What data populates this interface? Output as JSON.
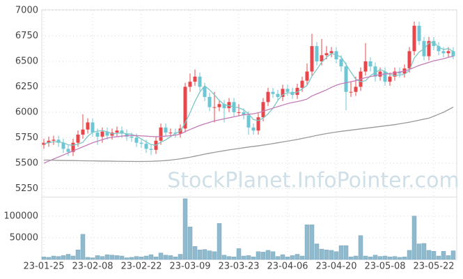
{
  "chart_data": {
    "type": "candlestick",
    "watermark": "StockPlanet.InfoPointer.com",
    "categories": [
      "23-01-25",
      null,
      null,
      null,
      null,
      null,
      null,
      null,
      null,
      null,
      "23-02-08",
      null,
      null,
      null,
      null,
      null,
      null,
      null,
      null,
      null,
      "23-02-22",
      null,
      null,
      null,
      null,
      null,
      null,
      null,
      null,
      null,
      "23-03-09",
      null,
      null,
      null,
      null,
      null,
      null,
      null,
      null,
      null,
      "23-03-23",
      null,
      null,
      null,
      null,
      null,
      null,
      null,
      null,
      null,
      "23-04-06",
      null,
      null,
      null,
      null,
      null,
      null,
      null,
      null,
      null,
      "23-04-20",
      null,
      null,
      null,
      null,
      null,
      null,
      null,
      null,
      null,
      "23-05-08",
      null,
      null,
      null,
      null,
      null,
      null,
      null,
      null,
      null,
      "23-05-22",
      null,
      null,
      null,
      null
    ],
    "open": [
      5680,
      5700,
      5720,
      5730,
      5700,
      5640,
      5610,
      5700,
      5780,
      5830,
      5900,
      5800,
      5760,
      5810,
      5770,
      5800,
      5820,
      5790,
      5760,
      5750,
      5700,
      5690,
      5640,
      5630,
      5720,
      5850,
      5800,
      5800,
      5790,
      5840,
      6250,
      6300,
      6350,
      6250,
      6150,
      6050,
      6050,
      6080,
      6040,
      6100,
      6000,
      6000,
      5970,
      5850,
      5820,
      5950,
      6100,
      6200,
      6180,
      6150,
      6230,
      6200,
      6170,
      6240,
      6310,
      6400,
      6650,
      6500,
      6560,
      6580,
      6600,
      6520,
      6450,
      6200,
      6200,
      6250,
      6400,
      6500,
      6450,
      6350,
      6400,
      6300,
      6350,
      6400,
      6380,
      6430,
      6600,
      6850,
      6700,
      6550,
      6700,
      6650,
      6600,
      6580,
      6600
    ],
    "high": [
      5740,
      5760,
      5770,
      5770,
      5740,
      5680,
      5740,
      5820,
      5980,
      5940,
      5940,
      5840,
      5850,
      5850,
      5840,
      5860,
      5860,
      5830,
      5800,
      5790,
      5740,
      5730,
      5680,
      5760,
      5890,
      5890,
      5840,
      5840,
      5880,
      6290,
      6380,
      6420,
      6390,
      6290,
      6190,
      6200,
      6120,
      6120,
      6140,
      6140,
      6080,
      6040,
      6010,
      5890,
      5990,
      6140,
      6240,
      6240,
      6220,
      6270,
      6270,
      6240,
      6280,
      6350,
      6480,
      6770,
      6690,
      6720,
      6650,
      6640,
      6640,
      6560,
      6490,
      6300,
      6350,
      6440,
      6680,
      6540,
      6490,
      6440,
      6440,
      6390,
      6440,
      6440,
      6470,
      6640,
      6890,
      6890,
      6740,
      6740,
      6740,
      6690,
      6640,
      6640,
      6640
    ],
    "low": [
      5640,
      5660,
      5680,
      5660,
      5600,
      5570,
      5570,
      5660,
      5740,
      5790,
      5760,
      5680,
      5700,
      5730,
      5730,
      5760,
      5750,
      5720,
      5710,
      5660,
      5650,
      5600,
      5580,
      5590,
      5680,
      5760,
      5760,
      5750,
      5750,
      5800,
      6200,
      6260,
      6210,
      6110,
      6010,
      5900,
      6010,
      5900,
      6000,
      5960,
      5960,
      5930,
      5780,
      5780,
      5780,
      5910,
      6060,
      6140,
      6110,
      6110,
      6160,
      6130,
      6130,
      6200,
      6270,
      6360,
      6460,
      6460,
      6520,
      6540,
      6480,
      6400,
      6020,
      6150,
      6160,
      6210,
      6360,
      6400,
      6300,
      6310,
      6260,
      6260,
      6310,
      6340,
      6340,
      6390,
      6560,
      6660,
      6510,
      6510,
      6610,
      6560,
      6540,
      6540,
      6520
    ],
    "close": [
      5700,
      5720,
      5730,
      5700,
      5640,
      5610,
      5700,
      5780,
      5830,
      5900,
      5800,
      5760,
      5810,
      5770,
      5800,
      5820,
      5790,
      5760,
      5750,
      5700,
      5690,
      5640,
      5630,
      5720,
      5850,
      5800,
      5800,
      5790,
      5840,
      6250,
      6300,
      6350,
      6250,
      6150,
      6050,
      6050,
      6080,
      6040,
      6100,
      6000,
      6000,
      5970,
      5850,
      5820,
      5950,
      6100,
      6200,
      6180,
      6150,
      6230,
      6200,
      6170,
      6240,
      6310,
      6400,
      6650,
      6500,
      6560,
      6580,
      6600,
      6520,
      6450,
      6200,
      6200,
      6250,
      6400,
      6500,
      6450,
      6350,
      6400,
      6300,
      6350,
      6400,
      6380,
      6430,
      6600,
      6850,
      6700,
      6550,
      6700,
      6650,
      6600,
      6580,
      6600,
      6550
    ],
    "up_color": "#e8464a",
    "down_color": "#6cc6d4",
    "series": [
      {
        "color": "#7cc6c6",
        "values": [
          5690,
          5700,
          5710,
          5710,
          5700,
          5680,
          5676,
          5686,
          5704,
          5764,
          5802,
          5814,
          5820,
          5808,
          5788,
          5792,
          5798,
          5788,
          5784,
          5764,
          5738,
          5708,
          5682,
          5676,
          5706,
          5728,
          5760,
          5792,
          5816,
          5896,
          5996,
          6106,
          6198,
          6260,
          6220,
          6170,
          6116,
          6074,
          6064,
          6054,
          6044,
          6022,
          5984,
          5928,
          5918,
          5942,
          5984,
          6040,
          6116,
          6172,
          6192,
          6186,
          6198,
          6230,
          6264,
          6354,
          6420,
          6492,
          6538,
          6578,
          6562,
          6542,
          6470,
          6394,
          6324,
          6300,
          6310,
          6360,
          6390,
          6420,
          6400,
          6370,
          6360,
          6366,
          6372,
          6412,
          6532,
          6592,
          6622,
          6680,
          6690,
          6640,
          6616,
          6626,
          6596
        ]
      },
      {
        "color": "#c47cb8",
        "values": [
          5500,
          5520,
          5540,
          5560,
          5580,
          5600,
          5620,
          5640,
          5660,
          5680,
          5700,
          5715,
          5730,
          5745,
          5755,
          5760,
          5765,
          5770,
          5770,
          5770,
          5768,
          5765,
          5762,
          5760,
          5762,
          5765,
          5770,
          5775,
          5785,
          5810,
          5830,
          5850,
          5870,
          5885,
          5900,
          5915,
          5925,
          5935,
          5945,
          5955,
          5965,
          5975,
          5980,
          5985,
          5995,
          6010,
          6025,
          6040,
          6055,
          6070,
          6085,
          6095,
          6105,
          6115,
          6130,
          6160,
          6180,
          6200,
          6220,
          6245,
          6265,
          6280,
          6290,
          6300,
          6310,
          6325,
          6340,
          6350,
          6360,
          6370,
          6375,
          6380,
          6385,
          6395,
          6405,
          6420,
          6440,
          6460,
          6475,
          6490,
          6505,
          6515,
          6525,
          6540,
          6550
        ]
      },
      {
        "color": "#999999",
        "values": [
          5530,
          5530,
          5528,
          5527,
          5526,
          5525,
          5525,
          5524,
          5523,
          5522,
          5522,
          5521,
          5520,
          5520,
          5519,
          5518,
          5518,
          5517,
          5517,
          5516,
          5516,
          5517,
          5518,
          5520,
          5522,
          5525,
          5530,
          5536,
          5542,
          5550,
          5558,
          5568,
          5578,
          5588,
          5597,
          5606,
          5614,
          5622,
          5630,
          5637,
          5644,
          5651,
          5658,
          5664,
          5670,
          5677,
          5684,
          5692,
          5700,
          5708,
          5716,
          5724,
          5732,
          5742,
          5752,
          5762,
          5772,
          5782,
          5790,
          5798,
          5806,
          5812,
          5818,
          5824,
          5830,
          5836,
          5842,
          5848,
          5854,
          5860,
          5866,
          5872,
          5878,
          5886,
          5894,
          5902,
          5912,
          5922,
          5932,
          5942,
          5960,
          5980,
          6000,
          6025,
          6050
        ]
      }
    ],
    "ylim": [
      5170,
      7000
    ],
    "yticks": [
      5250,
      5500,
      5750,
      6000,
      6250,
      6500,
      6750,
      7000
    ],
    "volume": {
      "color": "#8fb9cc",
      "ylim": [
        0,
        143000
      ],
      "yticks": [
        50000,
        100000
      ],
      "values": [
        6000,
        5000,
        8000,
        7000,
        9000,
        12000,
        8000,
        22000,
        58000,
        5000,
        4000,
        9000,
        7000,
        11000,
        10000,
        9000,
        8000,
        4000,
        5000,
        7000,
        6000,
        8000,
        11000,
        6000,
        15000,
        10000,
        9000,
        6000,
        12000,
        140000,
        75000,
        30000,
        22000,
        23000,
        20000,
        18000,
        83000,
        10000,
        7000,
        6000,
        25000,
        8000,
        9000,
        6000,
        18000,
        17000,
        21000,
        18000,
        7000,
        11000,
        6000,
        9000,
        12000,
        8000,
        80000,
        80000,
        36000,
        24000,
        22000,
        21000,
        18000,
        32000,
        32000,
        6000,
        8000,
        55000,
        8000,
        6000,
        10000,
        7000,
        8000,
        6000,
        7000,
        5000,
        6000,
        21000,
        100000,
        36000,
        37000,
        21000,
        19000,
        8000,
        19000,
        9000,
        20000
      ]
    },
    "grid": true
  }
}
